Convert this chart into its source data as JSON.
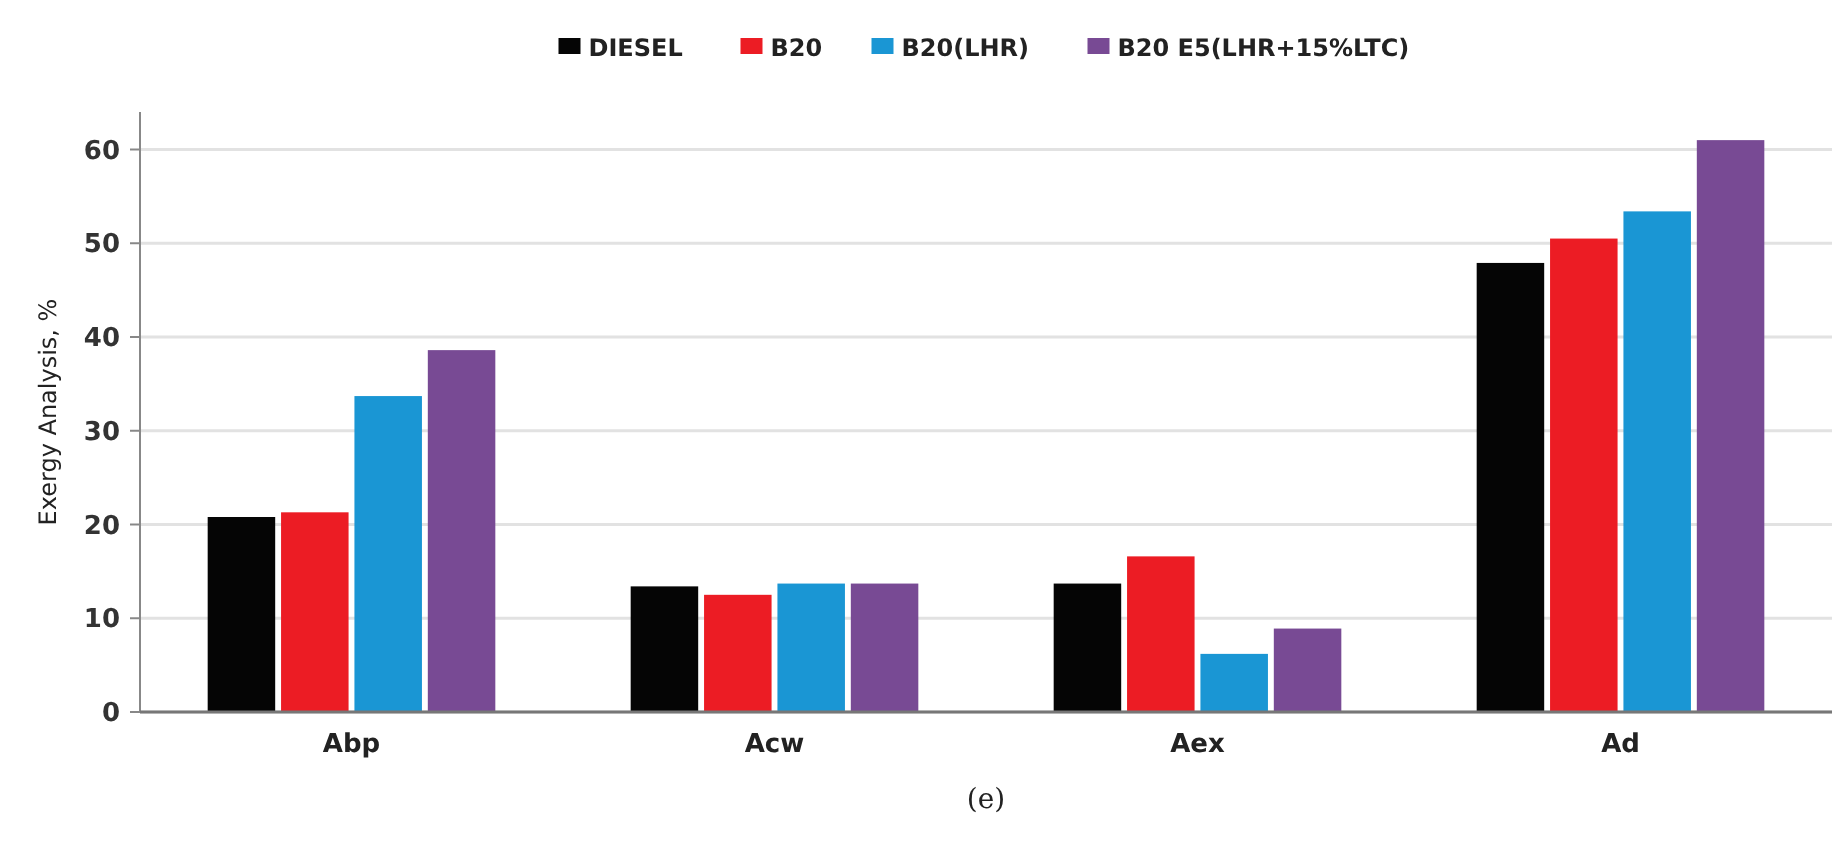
{
  "chart_data": {
    "type": "bar",
    "ylabel": "Exergy Analysis, %",
    "categories": [
      "Abp",
      "Acw",
      "Aex",
      "Ad"
    ],
    "series": [
      {
        "name": "DIESEL",
        "color": "#050505",
        "values": [
          20.8,
          13.4,
          13.7,
          47.9
        ]
      },
      {
        "name": "B20",
        "color": "#ec1c24",
        "values": [
          21.3,
          12.5,
          16.6,
          50.5
        ]
      },
      {
        "name": "B20(LHR)",
        "color": "#1a96d4",
        "values": [
          33.7,
          13.7,
          6.2,
          53.4
        ]
      },
      {
        "name": "B20 E5(LHR+15%LTC)",
        "color": "#784a94",
        "values": [
          38.6,
          13.7,
          8.9,
          61.0
        ]
      }
    ],
    "ylim": [
      0,
      64
    ],
    "yticks": [
      0,
      10,
      20,
      30,
      40,
      50,
      60
    ],
    "grid": "y",
    "legend": "top",
    "annotations": [
      "(e)"
    ]
  }
}
